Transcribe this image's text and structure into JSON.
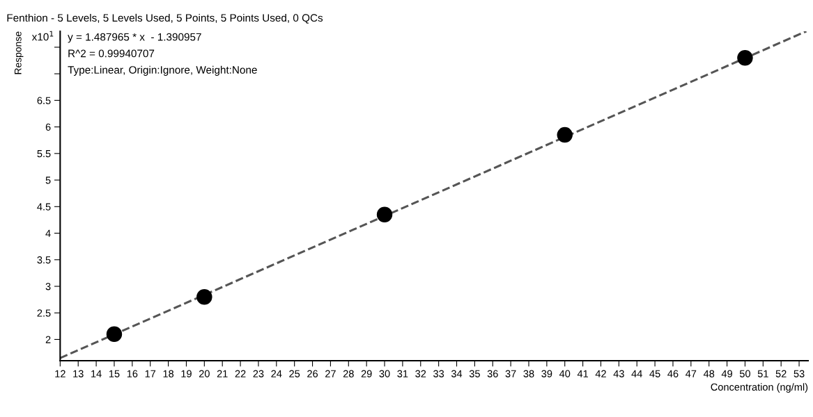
{
  "chart_data": {
    "type": "scatter",
    "title": "Fenthion - 5 Levels, 5 Levels Used, 5 Points, 5 Points Used, 0 QCs",
    "xlabel": "Concentration (ng/ml)",
    "ylabel": "Response",
    "annotations": [
      "x10$^{1}$",
      "y = 1.487965 * x  - 1.390957",
      "R^2 = 0.99940707",
      "Type:Linear, Origin:Ignore, Weight:None"
    ],
    "series": [
      {
        "color": "#000000",
        "marker": "circle",
        "x": [
          15,
          20,
          30,
          40,
          50
        ],
        "values": [
          2.1,
          2.8,
          4.35,
          5.85,
          7.3
        ]
      },
      {
        "type": "line",
        "color": "#555555",
        "line_style": "dashed",
        "marker": "none",
        "x": [
          12,
          53.4
        ],
        "values": [
          1.65,
          7.8
        ]
      }
    ],
    "xlim": [
      12,
      53.5
    ],
    "ylim": [
      1.6,
      7.8
    ],
    "xticks": [
      12,
      13,
      14,
      15,
      16,
      17,
      18,
      19,
      20,
      21,
      22,
      23,
      24,
      25,
      26,
      27,
      28,
      29,
      30,
      31,
      32,
      33,
      34,
      35,
      36,
      37,
      38,
      39,
      40,
      41,
      42,
      43,
      44,
      45,
      46,
      47,
      48,
      49,
      50,
      51,
      52,
      53
    ],
    "yticks": [
      2,
      2.5,
      3,
      3.5,
      4,
      4.5,
      5,
      5.5,
      6,
      6.5,
      {
        "value": 7,
        "label": null
      },
      {
        "value": 7.5,
        "label": null
      }
    ],
    "grid": false,
    "legend": false
  }
}
